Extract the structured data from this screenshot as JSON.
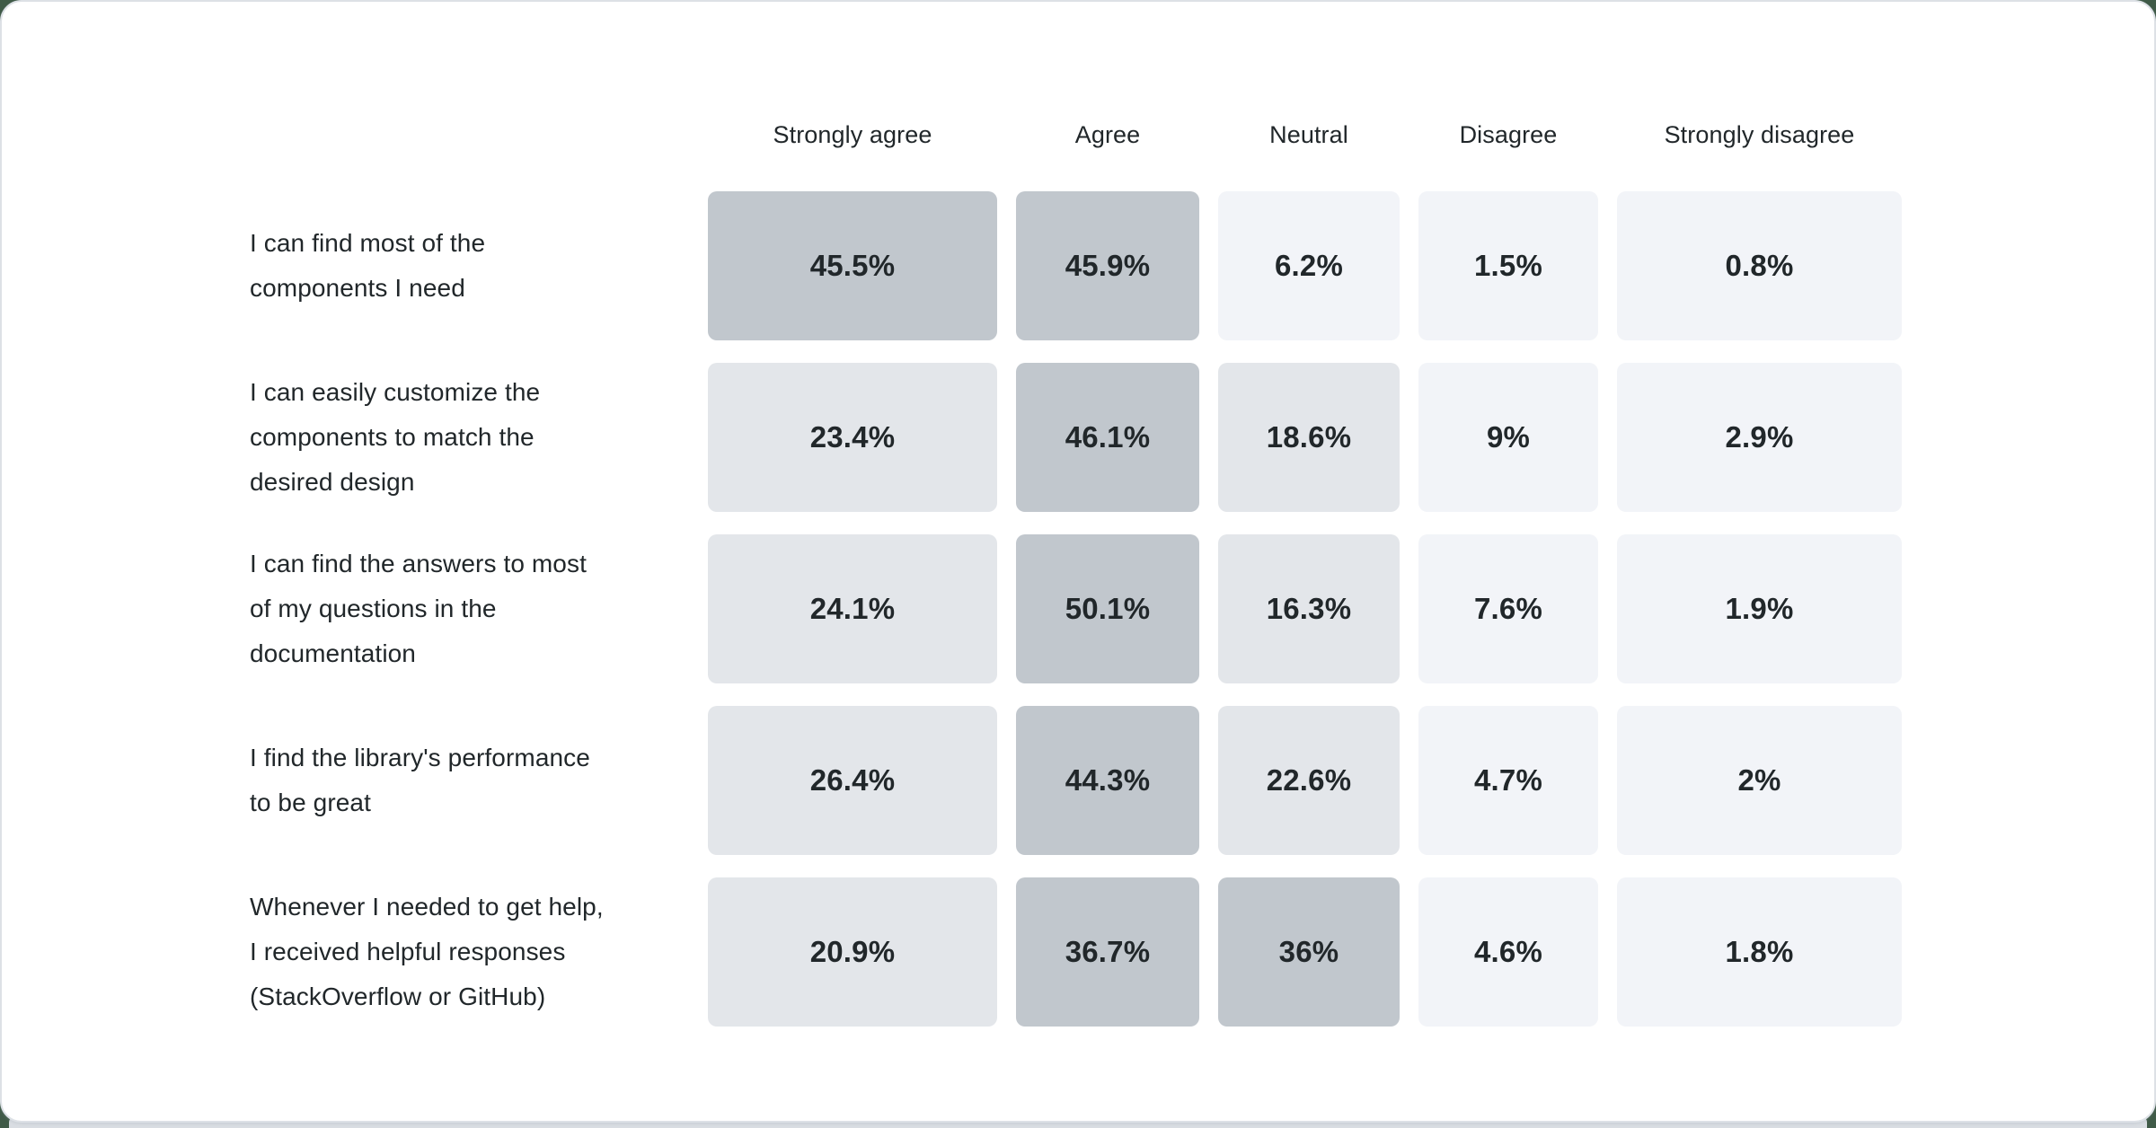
{
  "page": {
    "background_color": "#3f5a47",
    "card_background": "#ffffff",
    "card_border_color": "#dde1e6",
    "bottom_strip_color": "#d9dde2"
  },
  "chart_data": {
    "type": "heatmap",
    "title": "",
    "value_format": "percent",
    "legend": "none",
    "grid": "off",
    "columns": [
      "Strongly agree",
      "Agree",
      "Neutral",
      "Disagree",
      "Strongly disagree"
    ],
    "rows": [
      {
        "label": "I can find most of the\ncomponents I need",
        "values": [
          45.5,
          45.9,
          6.2,
          1.5,
          0.8
        ],
        "display": [
          "45.5%",
          "45.9%",
          "6.2%",
          "1.5%",
          "0.8%"
        ]
      },
      {
        "label": "I can easily customize the\ncomponents to match the\ndesired design",
        "values": [
          23.4,
          46.1,
          18.6,
          9,
          2.9
        ],
        "display": [
          "23.4%",
          "46.1%",
          "18.6%",
          "9%",
          "2.9%"
        ]
      },
      {
        "label": "I can find the answers to most\nof my questions in the\ndocumentation",
        "values": [
          24.1,
          50.1,
          16.3,
          7.6,
          1.9
        ],
        "display": [
          "24.1%",
          "50.1%",
          "16.3%",
          "7.6%",
          "1.9%"
        ]
      },
      {
        "label": "I find the library's performance\nto be great",
        "values": [
          26.4,
          44.3,
          22.6,
          4.7,
          2
        ],
        "display": [
          "26.4%",
          "44.3%",
          "22.6%",
          "4.7%",
          "2%"
        ]
      },
      {
        "label": "Whenever I needed to get help,\nI received helpful responses\n(StackOverflow or GitHub)",
        "values": [
          20.9,
          36.7,
          36,
          4.6,
          1.8
        ],
        "display": [
          "20.9%",
          "36.7%",
          "36%",
          "4.6%",
          "1.8%"
        ]
      }
    ],
    "heatmap_scale": {
      "low": "#f2f4f8",
      "mid": "#e3e6ea",
      "high": "#c1c7cd",
      "thresholds": [
        10,
        30
      ]
    },
    "text_color": "#21272a"
  }
}
